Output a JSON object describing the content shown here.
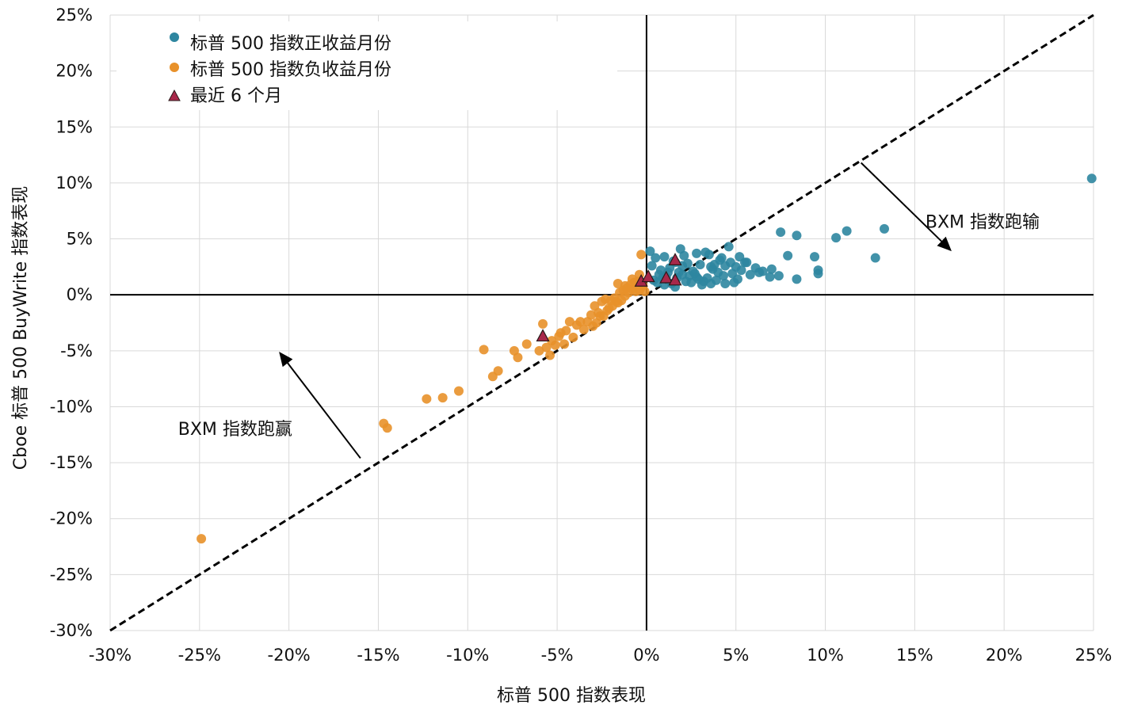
{
  "chart_data": {
    "type": "scatter",
    "title": "",
    "xlabel": "标普 500 指数表现",
    "ylabel": "Cboe 标普 500 BuyWrite 指数表现",
    "xlim": [
      -30,
      25
    ],
    "ylim": [
      -30,
      25
    ],
    "x_ticks": [
      -30,
      -25,
      -20,
      -15,
      -10,
      -5,
      0,
      5,
      10,
      15,
      20,
      25
    ],
    "y_ticks": [
      -30,
      -25,
      -20,
      -15,
      -10,
      -5,
      0,
      5,
      10,
      15,
      20,
      25
    ],
    "x_tick_labels": [
      "-30%",
      "-25%",
      "-20%",
      "-15%",
      "-10%",
      "-5%",
      "0%",
      "5%",
      "10%",
      "15%",
      "20%",
      "25%"
    ],
    "y_tick_labels": [
      "-30%",
      "-25%",
      "-20%",
      "-15%",
      "-10%",
      "-5%",
      "0%",
      "5%",
      "10%",
      "15%",
      "20%",
      "25%"
    ],
    "grid": true,
    "legend_position": "top-left",
    "reference_line": {
      "x": [
        -30,
        25
      ],
      "y": [
        -30,
        25
      ],
      "style": "dashed"
    },
    "annotations": [
      {
        "text": "BXM 指数跑输",
        "x": 15.6,
        "y": 6.0
      },
      {
        "text": "BXM 指数跑赢",
        "x": -26.2,
        "y": -12.5
      }
    ],
    "arrows": [
      {
        "from": [
          12.0,
          11.8
        ],
        "to": [
          17.0,
          4.0
        ]
      },
      {
        "from": [
          -16.0,
          -14.6
        ],
        "to": [
          -20.5,
          -5.2
        ]
      }
    ],
    "series": [
      {
        "name": "标普 500 指数正收益月份",
        "color": "#2e86a0",
        "marker": "circle",
        "points": [
          [
            24.9,
            10.4
          ],
          [
            13.3,
            5.9
          ],
          [
            11.2,
            5.7
          ],
          [
            10.6,
            5.1
          ],
          [
            12.8,
            3.3
          ],
          [
            7.5,
            5.6
          ],
          [
            8.4,
            5.3
          ],
          [
            9.6,
            2.2
          ],
          [
            9.6,
            1.9
          ],
          [
            9.4,
            3.4
          ],
          [
            7.9,
            3.5
          ],
          [
            8.4,
            1.4
          ],
          [
            7.4,
            1.7
          ],
          [
            7.0,
            2.3
          ],
          [
            6.9,
            1.6
          ],
          [
            6.5,
            2.1
          ],
          [
            6.1,
            2.4
          ],
          [
            5.5,
            2.9
          ],
          [
            5.6,
            2.9
          ],
          [
            5.2,
            3.4
          ],
          [
            4.8,
            1.9
          ],
          [
            4.6,
            4.3
          ],
          [
            4.4,
            2.6
          ],
          [
            4.1,
            3.1
          ],
          [
            3.9,
            1.3
          ],
          [
            3.7,
            2.3
          ],
          [
            3.5,
            3.6
          ],
          [
            3.3,
            3.8
          ],
          [
            3.2,
            1.2
          ],
          [
            3.0,
            2.7
          ],
          [
            2.8,
            3.7
          ],
          [
            2.7,
            1.9
          ],
          [
            2.5,
            1.1
          ],
          [
            2.3,
            2.8
          ],
          [
            2.1,
            3.5
          ],
          [
            1.9,
            4.1
          ],
          [
            1.8,
            2.0
          ],
          [
            1.6,
            0.7
          ],
          [
            1.5,
            3.0
          ],
          [
            1.3,
            2.4
          ],
          [
            1.1,
            1.6
          ],
          [
            1.0,
            3.4
          ],
          [
            0.8,
            2.2
          ],
          [
            0.5,
            3.3
          ],
          [
            0.4,
            1.3
          ],
          [
            0.3,
            2.6
          ],
          [
            0.2,
            3.9
          ],
          [
            5.1,
            1.4
          ],
          [
            4.9,
            1.1
          ],
          [
            4.3,
            1.7
          ],
          [
            4.0,
            2.0
          ],
          [
            3.6,
            1.0
          ],
          [
            3.4,
            1.5
          ],
          [
            3.1,
            0.9
          ],
          [
            2.9,
            1.4
          ],
          [
            2.6,
            2.1
          ],
          [
            2.4,
            1.7
          ],
          [
            2.2,
            1.2
          ],
          [
            2.0,
            2.6
          ],
          [
            1.7,
            1.5
          ],
          [
            1.4,
            1.0
          ],
          [
            1.2,
            2.0
          ],
          [
            0.9,
            1.5
          ],
          [
            0.7,
            1.8
          ],
          [
            0.6,
            1.1
          ],
          [
            6.3,
            2.0
          ],
          [
            5.8,
            1.8
          ],
          [
            5.3,
            2.2
          ],
          [
            4.7,
            2.9
          ],
          [
            4.2,
            3.3
          ],
          [
            3.8,
            2.7
          ],
          [
            2.0,
            1.8
          ],
          [
            1.0,
            0.9
          ],
          [
            3.6,
            2.5
          ],
          [
            4.4,
            1.0
          ],
          [
            2.8,
            1.6
          ],
          [
            1.6,
            2.9
          ],
          [
            5.0,
            2.5
          ]
        ]
      },
      {
        "name": "标普 500 指数负收益月份",
        "color": "#e8912a",
        "marker": "circle",
        "points": [
          [
            -24.9,
            -21.8
          ],
          [
            -14.7,
            -11.5
          ],
          [
            -14.5,
            -11.9
          ],
          [
            -12.3,
            -9.3
          ],
          [
            -11.4,
            -9.2
          ],
          [
            -10.5,
            -8.6
          ],
          [
            -9.1,
            -4.9
          ],
          [
            -8.6,
            -7.3
          ],
          [
            -8.3,
            -6.8
          ],
          [
            -7.4,
            -5.0
          ],
          [
            -7.2,
            -5.6
          ],
          [
            -6.7,
            -4.4
          ],
          [
            -6.0,
            -5.0
          ],
          [
            -5.8,
            -2.6
          ],
          [
            -5.6,
            -4.7
          ],
          [
            -5.4,
            -5.4
          ],
          [
            -5.1,
            -4.5
          ],
          [
            -4.9,
            -3.7
          ],
          [
            -4.6,
            -4.4
          ],
          [
            -4.5,
            -3.2
          ],
          [
            -4.3,
            -2.4
          ],
          [
            -4.1,
            -3.8
          ],
          [
            -3.9,
            -2.7
          ],
          [
            -3.7,
            -2.4
          ],
          [
            -3.5,
            -3.1
          ],
          [
            -3.3,
            -2.4
          ],
          [
            -3.1,
            -1.8
          ],
          [
            -2.9,
            -1.0
          ],
          [
            -2.8,
            -2.5
          ],
          [
            -2.7,
            -1.6
          ],
          [
            -2.5,
            -0.6
          ],
          [
            -2.4,
            -1.9
          ],
          [
            -2.3,
            -0.4
          ],
          [
            -2.1,
            -1.2
          ],
          [
            -2.0,
            -0.5
          ],
          [
            -1.9,
            -1.0
          ],
          [
            -1.8,
            -0.3
          ],
          [
            -1.6,
            -0.7
          ],
          [
            -1.5,
            0.2
          ],
          [
            -1.4,
            -0.5
          ],
          [
            -1.3,
            0.4
          ],
          [
            -1.2,
            -0.1
          ],
          [
            -1.1,
            0.6
          ],
          [
            -1.0,
            0.2
          ],
          [
            -0.9,
            0.9
          ],
          [
            -0.8,
            0.5
          ],
          [
            -0.7,
            1.1
          ],
          [
            -0.6,
            0.3
          ],
          [
            -0.5,
            1.2
          ],
          [
            -0.4,
            0.4
          ],
          [
            -0.3,
            3.6
          ],
          [
            -0.2,
            0.8
          ],
          [
            -0.1,
            0.3
          ],
          [
            -1.6,
            1.0
          ],
          [
            -2.6,
            -1.9
          ],
          [
            -3.0,
            -2.8
          ],
          [
            -2.2,
            -1.4
          ],
          [
            -1.7,
            -0.6
          ],
          [
            -4.8,
            -3.4
          ],
          [
            -5.3,
            -4.1
          ],
          [
            -0.4,
            1.8
          ],
          [
            -0.8,
            1.4
          ],
          [
            -1.2,
            0.8
          ]
        ]
      },
      {
        "name": "最近 6 个月",
        "color": "#a8284a",
        "marker": "triangle",
        "points": [
          [
            -5.8,
            -3.7
          ],
          [
            -0.3,
            1.2
          ],
          [
            0.1,
            1.6
          ],
          [
            1.1,
            1.5
          ],
          [
            1.6,
            3.1
          ],
          [
            1.6,
            1.3
          ]
        ]
      }
    ]
  }
}
